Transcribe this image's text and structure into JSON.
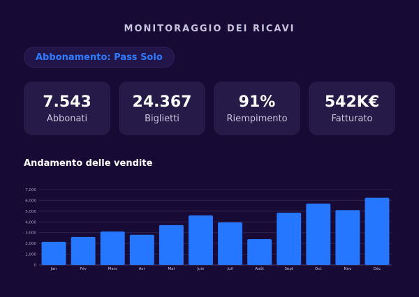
{
  "header": {
    "title": "MONITORAGGIO DEI RICAVI"
  },
  "filter": {
    "label": "Abbonamento: Pass Solo"
  },
  "kpis": [
    {
      "value": "7.543",
      "label": "Abbonati"
    },
    {
      "value": "24.367",
      "label": "Biglietti"
    },
    {
      "value": "91%",
      "label": "Riempimento"
    },
    {
      "value": "542K€",
      "label": "Fatturato"
    }
  ],
  "chart_section": {
    "title": "Andamento delle vendite"
  },
  "colors": {
    "background": "#170b35",
    "card": "#251a48",
    "accent": "#2f7bff",
    "bar": "#2677ff"
  },
  "chart_data": {
    "type": "bar",
    "categories": [
      "Jan",
      "Fév",
      "Mars",
      "Avr",
      "Mai",
      "Juin",
      "Juil",
      "Août",
      "Sept",
      "Oct",
      "Nov",
      "Déc"
    ],
    "values": [
      2150,
      2600,
      3100,
      2800,
      3700,
      4600,
      3950,
      2400,
      4850,
      5700,
      5100,
      6250
    ],
    "yticks": [
      "0",
      "1,000",
      "2,000",
      "3,000",
      "4,000",
      "5,000",
      "6,000",
      "7,000"
    ],
    "ylim": [
      0,
      7000
    ],
    "grid": true,
    "legend": "none"
  }
}
